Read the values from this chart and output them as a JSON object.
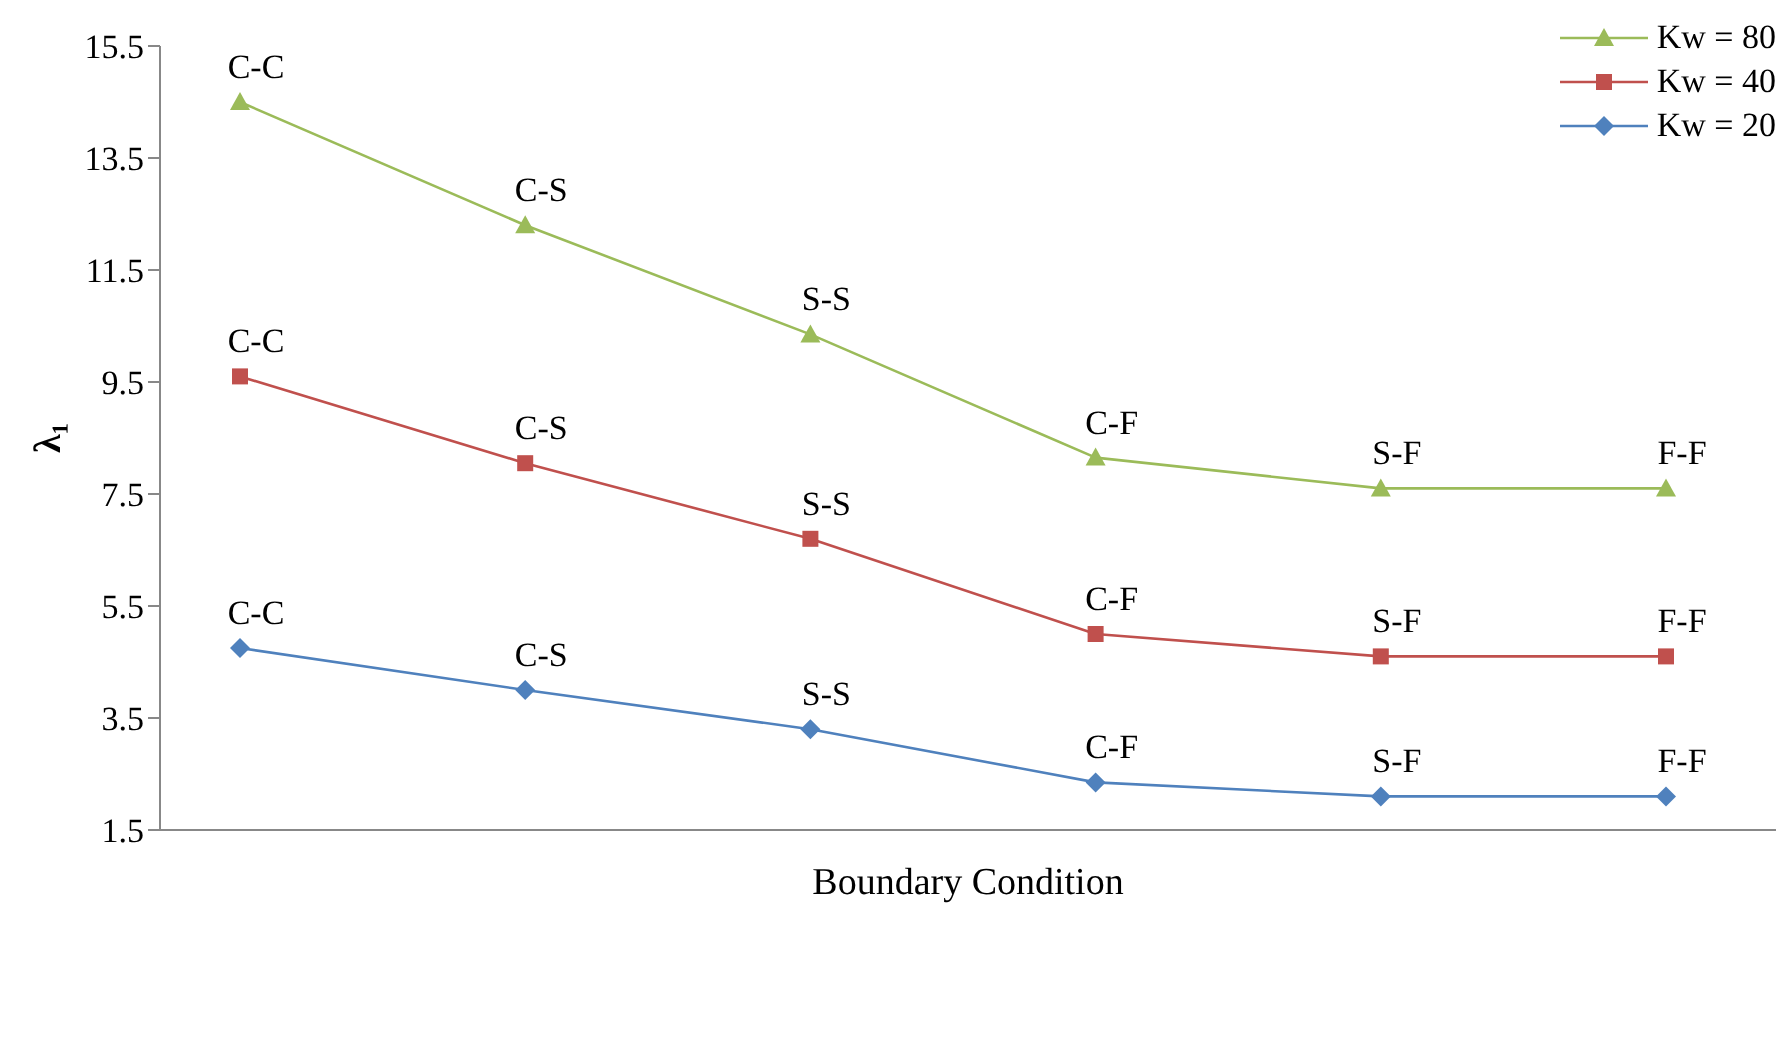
{
  "chart_data": {
    "type": "line",
    "xlabel": "Boundary Condition",
    "ylabel": "λ₁",
    "categories": [
      null,
      null,
      null,
      null,
      null,
      null
    ],
    "series": [
      {
        "name": "Kw = 80",
        "color": "#9bbb59",
        "marker": "triangle",
        "values": [
          14.5,
          12.3,
          10.35,
          8.15,
          7.6,
          7.6
        ],
        "value_labels": [
          "C-C",
          "C-S",
          "S-S",
          "C-F",
          "S-F",
          "F-F"
        ]
      },
      {
        "name": "Kw = 40",
        "color": "#c0504d",
        "marker": "square",
        "values": [
          9.6,
          8.05,
          6.7,
          5.0,
          4.6,
          4.6
        ],
        "value_labels": [
          "C-C",
          "C-S",
          "S-S",
          "C-F",
          "S-F",
          "F-F"
        ]
      },
      {
        "name": "Kw = 20",
        "color": "#4f81bd",
        "marker": "diamond",
        "values": [
          4.75,
          4.0,
          3.3,
          2.35,
          2.1,
          2.1
        ],
        "value_labels": [
          "C-C",
          "C-S",
          "S-S",
          "C-F",
          "S-F",
          "F-F"
        ]
      }
    ],
    "ylim": [
      1.5,
      15.5
    ],
    "yticks": [
      1.5,
      3.5,
      5.5,
      7.5,
      9.5,
      11.5,
      13.5,
      15.5
    ],
    "grid": false,
    "legend": "top right",
    "tick_labels": "y"
  }
}
